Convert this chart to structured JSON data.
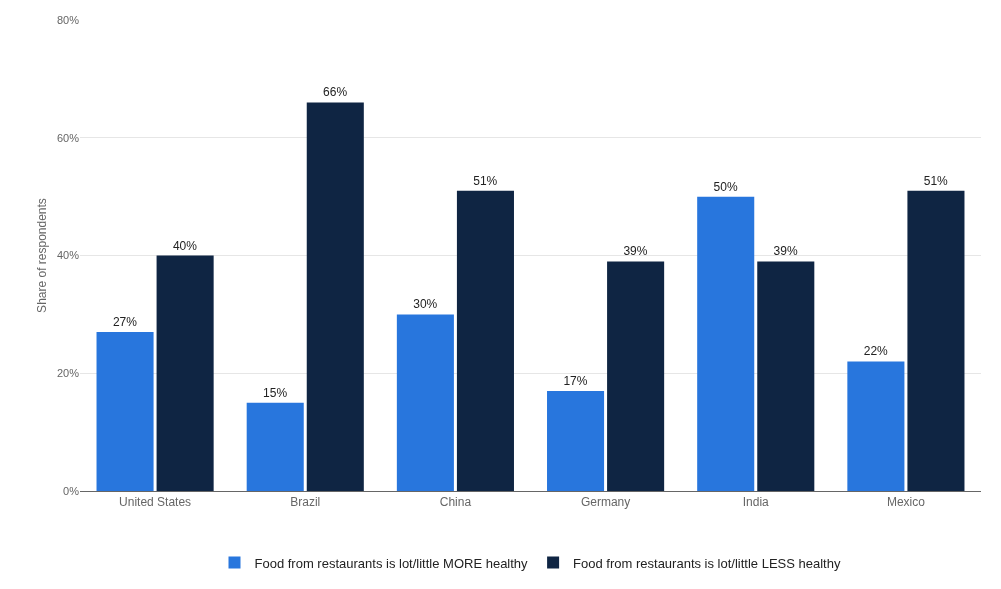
{
  "chart_data": {
    "type": "bar",
    "ylabel": "Share of respondents",
    "categories": [
      "United States",
      "Brazil",
      "China",
      "Germany",
      "India",
      "Mexico"
    ],
    "series": [
      {
        "name": "Food from restaurants is lot/little MORE healthy",
        "color": "#2876dd",
        "values": [
          27,
          15,
          30,
          17,
          50,
          22
        ],
        "value_labels": [
          "27%",
          "15%",
          "30%",
          "17%",
          "50%",
          "22%"
        ]
      },
      {
        "name": "Food from restaurants is lot/little LESS healthy",
        "color": "#0f2543",
        "values": [
          40,
          66,
          51,
          39,
          39,
          51
        ],
        "value_labels": [
          "40%",
          "66%",
          "51%",
          "39%",
          "39%",
          "51%"
        ]
      }
    ],
    "ylim": [
      0,
      80
    ],
    "yticks": [
      {
        "value": 0,
        "label": "0%"
      },
      {
        "value": 20,
        "label": "20%"
      },
      {
        "value": 40,
        "label": "40%"
      },
      {
        "value": 60,
        "label": "60%"
      },
      {
        "value": 80,
        "label": "80%"
      }
    ],
    "grid": "y",
    "legend": "bottom"
  }
}
